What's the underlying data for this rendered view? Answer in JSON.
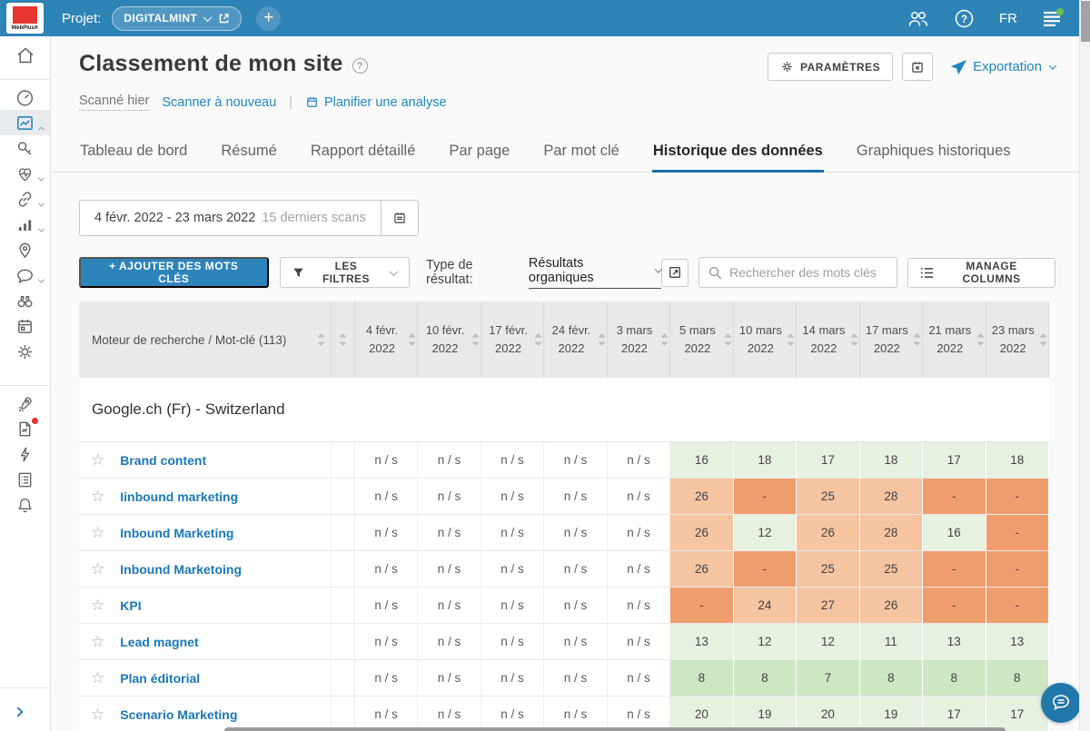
{
  "topbar": {
    "brand": "WebPlus",
    "project_label": "Projet:",
    "project_name": "DIGITALMINT",
    "language": "FR"
  },
  "sidebar": {
    "items": [
      "home",
      "dashboard",
      "rank-tracking",
      "keywords",
      "site-health",
      "backlinks",
      "analytics",
      "local",
      "social",
      "competitors",
      "planner",
      "settings",
      "rocket",
      "pdf-reports",
      "quick-actions",
      "tasks",
      "notifications"
    ],
    "active": "rank-tracking"
  },
  "header": {
    "title": "Classement de mon site",
    "scanned": "Scanné hier",
    "rescan": "Scanner à nouveau",
    "separator": "|",
    "schedule": "Planifier une analyse",
    "settings_button": "PARAMÈTRES",
    "export_button": "Exportation"
  },
  "tabs": [
    {
      "label": "Tableau de bord",
      "active": false
    },
    {
      "label": "Résumé",
      "active": false
    },
    {
      "label": "Rapport détaillé",
      "active": false
    },
    {
      "label": "Par page",
      "active": false
    },
    {
      "label": "Par mot clé",
      "active": false
    },
    {
      "label": "Historique des données",
      "active": true
    },
    {
      "label": "Graphiques historiques",
      "active": false
    }
  ],
  "daterange": {
    "range": "4 févr. 2022 - 23 mars 2022",
    "hint": "15 derniers scans"
  },
  "toolbar": {
    "add_keywords": "+ AJOUTER DES MOTS CLÉS",
    "filters": "LES FILTRES",
    "type_label": "Type de résultat:",
    "type_value": "Résultats organiques",
    "search_placeholder": "Rechercher des mots clés",
    "manage_columns": "MANAGE COLUMNS"
  },
  "colors": {
    "topbar": "#2e83b7",
    "accent_blue": "#2d84ba",
    "link_blue": "#1b78b8",
    "active_tab_underline": "#1c6fa8",
    "header_bg": "#e9e9e9"
  },
  "table": {
    "keyword_header": "Moteur de recherche / Mot-clé (113)",
    "columns": [
      "4 févr. 2022",
      "10 févr. 2022",
      "17 févr. 2022",
      "24 févr. 2022",
      "3 mars 2022",
      "5 mars 2022",
      "10 mars 2022",
      "14 mars 2022",
      "17 mars 2022",
      "21 mars 2022",
      "23 mars 2022"
    ],
    "group": "Google.ch (Fr) - Switzerland",
    "cell_colors": {
      "ns": "#ffffff",
      "g1": "#e7f1e1",
      "g2": "#cfe6c3",
      "o1": "#f6c4a1",
      "o2": "#f09d6e"
    },
    "rows": [
      {
        "keyword": "Brand content",
        "cells": [
          {
            "v": "n / s",
            "c": "ns"
          },
          {
            "v": "n / s",
            "c": "ns"
          },
          {
            "v": "n / s",
            "c": "ns"
          },
          {
            "v": "n / s",
            "c": "ns"
          },
          {
            "v": "n / s",
            "c": "ns"
          },
          {
            "v": "16",
            "c": "g1"
          },
          {
            "v": "18",
            "c": "g1"
          },
          {
            "v": "17",
            "c": "g1"
          },
          {
            "v": "18",
            "c": "g1"
          },
          {
            "v": "17",
            "c": "g1"
          },
          {
            "v": "18",
            "c": "g1"
          }
        ]
      },
      {
        "keyword": "Iinbound marketing",
        "cells": [
          {
            "v": "n / s",
            "c": "ns"
          },
          {
            "v": "n / s",
            "c": "ns"
          },
          {
            "v": "n / s",
            "c": "ns"
          },
          {
            "v": "n / s",
            "c": "ns"
          },
          {
            "v": "n / s",
            "c": "ns"
          },
          {
            "v": "26",
            "c": "o1"
          },
          {
            "v": "-",
            "c": "o2"
          },
          {
            "v": "25",
            "c": "o1"
          },
          {
            "v": "28",
            "c": "o1"
          },
          {
            "v": "-",
            "c": "o2"
          },
          {
            "v": "-",
            "c": "o2"
          }
        ]
      },
      {
        "keyword": "Inbound Marketing",
        "cells": [
          {
            "v": "n / s",
            "c": "ns"
          },
          {
            "v": "n / s",
            "c": "ns"
          },
          {
            "v": "n / s",
            "c": "ns"
          },
          {
            "v": "n / s",
            "c": "ns"
          },
          {
            "v": "n / s",
            "c": "ns"
          },
          {
            "v": "26",
            "c": "o1"
          },
          {
            "v": "12",
            "c": "g1"
          },
          {
            "v": "26",
            "c": "o1"
          },
          {
            "v": "28",
            "c": "o1"
          },
          {
            "v": "16",
            "c": "g1"
          },
          {
            "v": "-",
            "c": "o2"
          }
        ]
      },
      {
        "keyword": "Inbound Marketoing",
        "cells": [
          {
            "v": "n / s",
            "c": "ns"
          },
          {
            "v": "n / s",
            "c": "ns"
          },
          {
            "v": "n / s",
            "c": "ns"
          },
          {
            "v": "n / s",
            "c": "ns"
          },
          {
            "v": "n / s",
            "c": "ns"
          },
          {
            "v": "26",
            "c": "o1"
          },
          {
            "v": "-",
            "c": "o2"
          },
          {
            "v": "25",
            "c": "o1"
          },
          {
            "v": "25",
            "c": "o1"
          },
          {
            "v": "-",
            "c": "o2"
          },
          {
            "v": "-",
            "c": "o2"
          }
        ]
      },
      {
        "keyword": "KPI",
        "cells": [
          {
            "v": "n / s",
            "c": "ns"
          },
          {
            "v": "n / s",
            "c": "ns"
          },
          {
            "v": "n / s",
            "c": "ns"
          },
          {
            "v": "n / s",
            "c": "ns"
          },
          {
            "v": "n / s",
            "c": "ns"
          },
          {
            "v": "-",
            "c": "o2"
          },
          {
            "v": "24",
            "c": "o1"
          },
          {
            "v": "27",
            "c": "o1"
          },
          {
            "v": "26",
            "c": "o1"
          },
          {
            "v": "-",
            "c": "o2"
          },
          {
            "v": "-",
            "c": "o2"
          }
        ]
      },
      {
        "keyword": "Lead magnet",
        "cells": [
          {
            "v": "n / s",
            "c": "ns"
          },
          {
            "v": "n / s",
            "c": "ns"
          },
          {
            "v": "n / s",
            "c": "ns"
          },
          {
            "v": "n / s",
            "c": "ns"
          },
          {
            "v": "n / s",
            "c": "ns"
          },
          {
            "v": "13",
            "c": "g1"
          },
          {
            "v": "12",
            "c": "g1"
          },
          {
            "v": "12",
            "c": "g1"
          },
          {
            "v": "11",
            "c": "g1"
          },
          {
            "v": "13",
            "c": "g1"
          },
          {
            "v": "13",
            "c": "g1"
          }
        ]
      },
      {
        "keyword": "Plan éditorial",
        "cells": [
          {
            "v": "n / s",
            "c": "ns"
          },
          {
            "v": "n / s",
            "c": "ns"
          },
          {
            "v": "n / s",
            "c": "ns"
          },
          {
            "v": "n / s",
            "c": "ns"
          },
          {
            "v": "n / s",
            "c": "ns"
          },
          {
            "v": "8",
            "c": "g2"
          },
          {
            "v": "8",
            "c": "g2"
          },
          {
            "v": "7",
            "c": "g2"
          },
          {
            "v": "8",
            "c": "g2"
          },
          {
            "v": "8",
            "c": "g2"
          },
          {
            "v": "8",
            "c": "g2"
          }
        ]
      },
      {
        "keyword": "Scenario Marketing",
        "cells": [
          {
            "v": "n / s",
            "c": "ns"
          },
          {
            "v": "n / s",
            "c": "ns"
          },
          {
            "v": "n / s",
            "c": "ns"
          },
          {
            "v": "n / s",
            "c": "ns"
          },
          {
            "v": "n / s",
            "c": "ns"
          },
          {
            "v": "20",
            "c": "g1"
          },
          {
            "v": "19",
            "c": "g1"
          },
          {
            "v": "20",
            "c": "g1"
          },
          {
            "v": "19",
            "c": "g1"
          },
          {
            "v": "17",
            "c": "g1"
          },
          {
            "v": "17",
            "c": "g1"
          }
        ]
      }
    ],
    "partial_row_colors": [
      "ns",
      "ns",
      "ns",
      "ns",
      "ns",
      "o2",
      "o1",
      "o1",
      "o1",
      "o2",
      "o2"
    ]
  }
}
